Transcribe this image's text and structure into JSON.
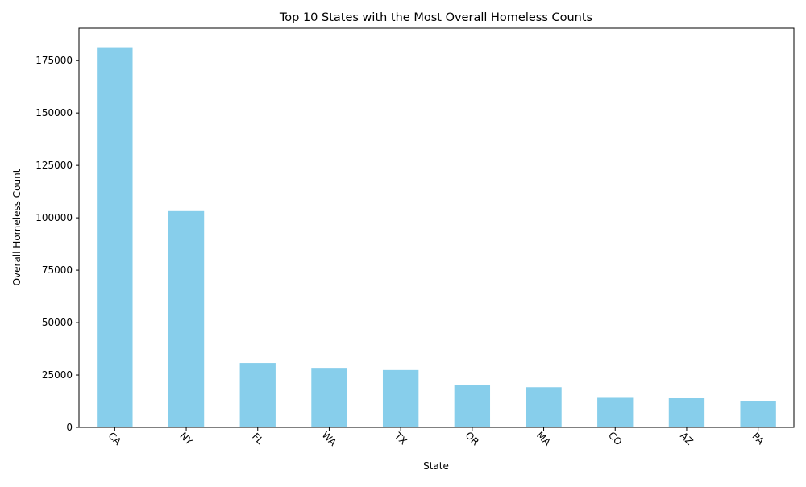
{
  "chart_data": {
    "type": "bar",
    "title": "Top 10 States with the Most Overall Homeless Counts",
    "xlabel": "State",
    "ylabel": "Overall Homeless Count",
    "categories": [
      "CA",
      "NY",
      "FL",
      "WA",
      "TX",
      "OR",
      "MA",
      "CO",
      "AZ",
      "PA"
    ],
    "values": [
      181399,
      103200,
      30756,
      28036,
      27377,
      20142,
      19141,
      14439,
      14237,
      12691
    ],
    "ylim": [
      0,
      190470
    ],
    "yticks": [
      0,
      25000,
      50000,
      75000,
      100000,
      125000,
      150000,
      175000
    ],
    "grid": false,
    "bar_color": "#87ceeb"
  }
}
